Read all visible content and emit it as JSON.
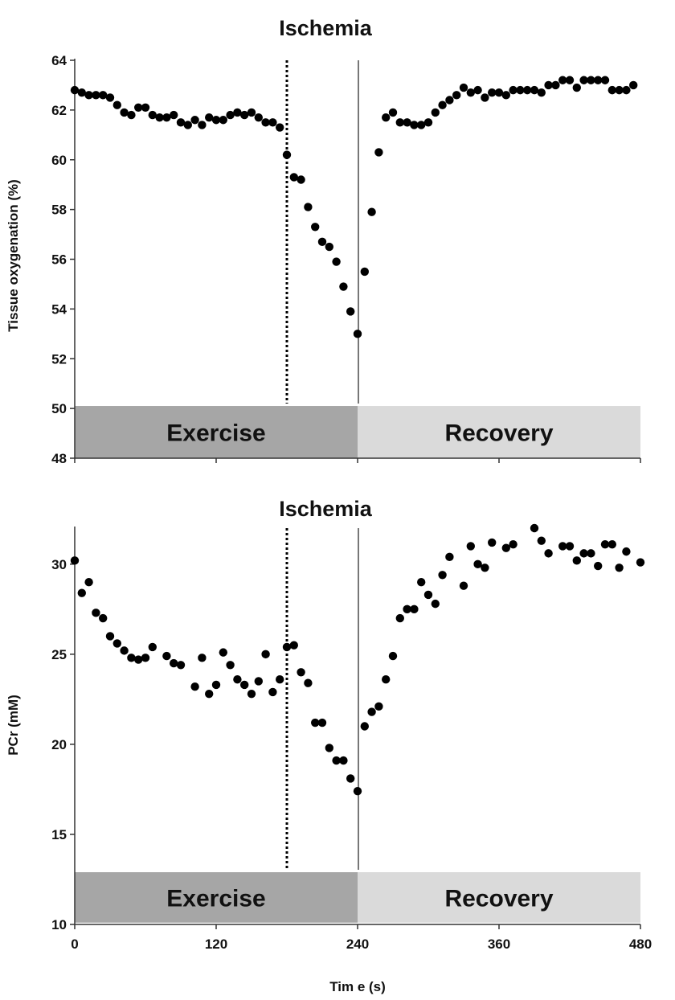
{
  "colors": {
    "exercise_band": "#a6a6a6",
    "recovery_band": "#dadada",
    "points": "#000000"
  },
  "chart_data": [
    {
      "type": "scatter",
      "title": "Ischemia",
      "xlabel": "",
      "ylabel": "Tissue oxygenation (%)",
      "xlim": [
        0,
        480
      ],
      "ylim": [
        48,
        64
      ],
      "yticks": [
        48,
        50,
        52,
        54,
        56,
        58,
        60,
        62,
        64
      ],
      "xticks": [
        0,
        120,
        240,
        360,
        480
      ],
      "show_xtick_labels": false,
      "ischemia_start": 180,
      "exercise_end": 240,
      "bands": [
        {
          "label": "Exercise",
          "x_from": 0,
          "x_to": 240,
          "y_from": 48,
          "y_to": 50.1
        },
        {
          "label": "Recovery",
          "x_from": 240,
          "x_to": 480,
          "y_from": 48,
          "y_to": 50.1
        }
      ],
      "series": [
        {
          "name": "Tissue oxygenation",
          "points": [
            [
              0,
              62.8
            ],
            [
              6,
              62.7
            ],
            [
              12,
              62.6
            ],
            [
              18,
              62.6
            ],
            [
              24,
              62.6
            ],
            [
              30,
              62.5
            ],
            [
              36,
              62.2
            ],
            [
              42,
              61.9
            ],
            [
              48,
              61.8
            ],
            [
              54,
              62.1
            ],
            [
              60,
              62.1
            ],
            [
              66,
              61.8
            ],
            [
              72,
              61.7
            ],
            [
              78,
              61.7
            ],
            [
              84,
              61.8
            ],
            [
              90,
              61.5
            ],
            [
              96,
              61.4
            ],
            [
              102,
              61.6
            ],
            [
              108,
              61.4
            ],
            [
              114,
              61.7
            ],
            [
              120,
              61.6
            ],
            [
              126,
              61.6
            ],
            [
              132,
              61.8
            ],
            [
              138,
              61.9
            ],
            [
              144,
              61.8
            ],
            [
              150,
              61.9
            ],
            [
              156,
              61.7
            ],
            [
              162,
              61.5
            ],
            [
              168,
              61.5
            ],
            [
              174,
              61.3
            ],
            [
              180,
              60.2
            ],
            [
              186,
              59.3
            ],
            [
              192,
              59.2
            ],
            [
              198,
              58.1
            ],
            [
              204,
              57.3
            ],
            [
              210,
              56.7
            ],
            [
              216,
              56.5
            ],
            [
              222,
              55.9
            ],
            [
              228,
              54.9
            ],
            [
              234,
              53.9
            ],
            [
              240,
              53.0
            ],
            [
              246,
              55.5
            ],
            [
              252,
              57.9
            ],
            [
              258,
              60.3
            ],
            [
              264,
              61.7
            ],
            [
              270,
              61.9
            ],
            [
              276,
              61.5
            ],
            [
              282,
              61.5
            ],
            [
              288,
              61.4
            ],
            [
              294,
              61.4
            ],
            [
              300,
              61.5
            ],
            [
              306,
              61.9
            ],
            [
              312,
              62.2
            ],
            [
              318,
              62.4
            ],
            [
              324,
              62.6
            ],
            [
              330,
              62.9
            ],
            [
              336,
              62.7
            ],
            [
              342,
              62.8
            ],
            [
              348,
              62.5
            ],
            [
              354,
              62.7
            ],
            [
              360,
              62.7
            ],
            [
              366,
              62.6
            ],
            [
              372,
              62.8
            ],
            [
              378,
              62.8
            ],
            [
              384,
              62.8
            ],
            [
              390,
              62.8
            ],
            [
              396,
              62.7
            ],
            [
              402,
              63.0
            ],
            [
              408,
              63.0
            ],
            [
              414,
              63.2
            ],
            [
              420,
              63.2
            ],
            [
              426,
              62.9
            ],
            [
              432,
              63.2
            ],
            [
              438,
              63.2
            ],
            [
              444,
              63.2
            ],
            [
              450,
              63.2
            ],
            [
              456,
              62.8
            ],
            [
              462,
              62.8
            ],
            [
              468,
              62.8
            ],
            [
              474,
              63.0
            ]
          ]
        }
      ]
    },
    {
      "type": "scatter",
      "title": "Ischemia",
      "xlabel": "Tim e (s)",
      "ylabel": "PCr (mM)",
      "xlim": [
        0,
        480
      ],
      "ylim": [
        10,
        32
      ],
      "yticks": [
        10,
        15,
        20,
        25,
        30
      ],
      "xticks": [
        0,
        120,
        240,
        360,
        480
      ],
      "xtick_labels": [
        "0",
        "120",
        "240",
        "360",
        "480"
      ],
      "show_xtick_labels": true,
      "ischemia_start": 180,
      "exercise_end": 240,
      "bands": [
        {
          "label": "Exercise",
          "x_from": 0,
          "x_to": 240,
          "y_from": 10.1,
          "y_to": 12.9
        },
        {
          "label": "Recovery",
          "x_from": 240,
          "x_to": 480,
          "y_from": 10.1,
          "y_to": 12.9
        }
      ],
      "series": [
        {
          "name": "PCr",
          "points": [
            [
              0,
              30.2
            ],
            [
              6,
              28.4
            ],
            [
              12,
              29.0
            ],
            [
              18,
              27.3
            ],
            [
              24,
              27.0
            ],
            [
              30,
              26.0
            ],
            [
              36,
              25.6
            ],
            [
              42,
              25.2
            ],
            [
              48,
              24.8
            ],
            [
              54,
              24.7
            ],
            [
              60,
              24.8
            ],
            [
              66,
              25.4
            ],
            [
              78,
              24.9
            ],
            [
              84,
              24.5
            ],
            [
              90,
              24.4
            ],
            [
              102,
              23.2
            ],
            [
              108,
              24.8
            ],
            [
              114,
              22.8
            ],
            [
              120,
              23.3
            ],
            [
              126,
              25.1
            ],
            [
              132,
              24.4
            ],
            [
              138,
              23.6
            ],
            [
              144,
              23.3
            ],
            [
              150,
              22.8
            ],
            [
              156,
              23.5
            ],
            [
              162,
              25.0
            ],
            [
              168,
              22.9
            ],
            [
              174,
              23.6
            ],
            [
              180,
              25.4
            ],
            [
              186,
              25.5
            ],
            [
              192,
              24.0
            ],
            [
              198,
              23.4
            ],
            [
              204,
              21.2
            ],
            [
              210,
              21.2
            ],
            [
              216,
              19.8
            ],
            [
              222,
              19.1
            ],
            [
              228,
              19.1
            ],
            [
              234,
              18.1
            ],
            [
              240,
              17.4
            ],
            [
              246,
              21.0
            ],
            [
              252,
              21.8
            ],
            [
              258,
              22.1
            ],
            [
              264,
              23.6
            ],
            [
              270,
              24.9
            ],
            [
              276,
              27.0
            ],
            [
              282,
              27.5
            ],
            [
              288,
              27.5
            ],
            [
              294,
              29.0
            ],
            [
              300,
              28.3
            ],
            [
              306,
              27.8
            ],
            [
              312,
              29.4
            ],
            [
              318,
              30.4
            ],
            [
              330,
              28.8
            ],
            [
              336,
              31.0
            ],
            [
              342,
              30.0
            ],
            [
              348,
              29.8
            ],
            [
              354,
              31.2
            ],
            [
              366,
              30.9
            ],
            [
              372,
              31.1
            ],
            [
              390,
              32.0
            ],
            [
              396,
              31.3
            ],
            [
              402,
              30.6
            ],
            [
              414,
              31.0
            ],
            [
              420,
              31.0
            ],
            [
              426,
              30.2
            ],
            [
              432,
              30.6
            ],
            [
              438,
              30.6
            ],
            [
              444,
              29.9
            ],
            [
              450,
              31.1
            ],
            [
              456,
              31.1
            ],
            [
              462,
              29.8
            ],
            [
              468,
              30.7
            ],
            [
              480,
              30.1
            ]
          ]
        }
      ]
    }
  ]
}
